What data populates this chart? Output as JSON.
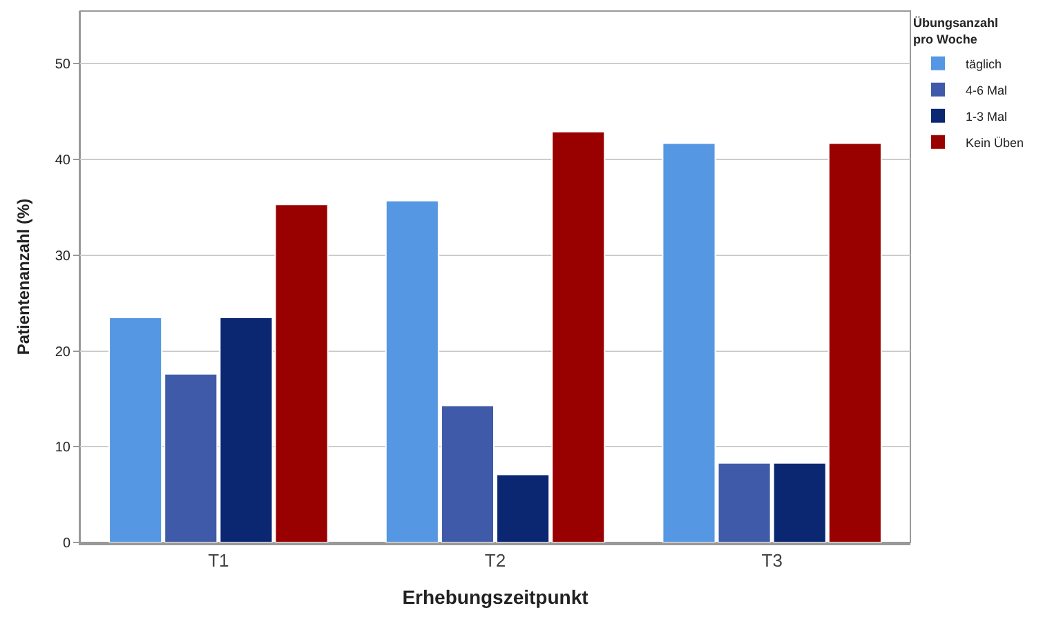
{
  "chart_data": {
    "type": "bar",
    "xlabel": "Erhebungszeitpunkt",
    "ylabel": "Patientenanzahl (%)",
    "legend_title": "Übungsanzahl\npro Woche",
    "categories": [
      "T1",
      "T2",
      "T3"
    ],
    "series": [
      {
        "name": "täglich",
        "color": "#5597e3",
        "values": [
          23.5,
          35.7,
          41.7
        ]
      },
      {
        "name": "4-6 Mal",
        "color": "#3f5aa8",
        "values": [
          17.6,
          14.3,
          8.3
        ]
      },
      {
        "name": "1-3 Mal",
        "color": "#0b2772",
        "values": [
          23.5,
          7.1,
          8.3
        ]
      },
      {
        "name": "Kein Üben",
        "color": "#990000",
        "values": [
          35.3,
          42.9,
          41.7
        ]
      }
    ],
    "ylim": [
      0,
      55.5
    ],
    "yticks": [
      0,
      10,
      20,
      30,
      40,
      50
    ],
    "grid": "y",
    "legend": "top right"
  }
}
